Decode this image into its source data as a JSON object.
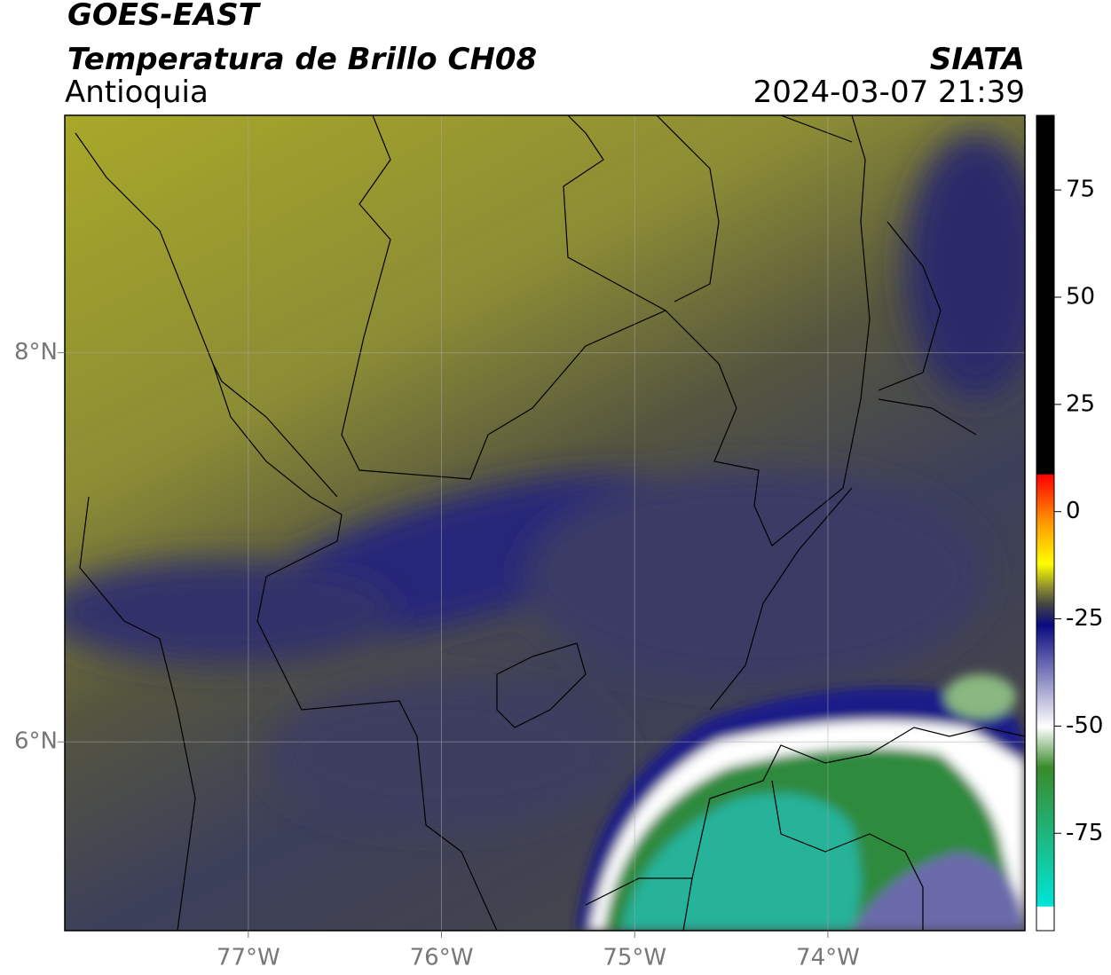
{
  "header": {
    "title": "GOES-EAST",
    "subtitle": "Temperatura de Brillo CH08",
    "region": "Antioquia",
    "source": "SIATA",
    "datetime": "2024-03-07 21:39"
  },
  "map": {
    "lonlim": [
      -77.95,
      -72.98
    ],
    "latlim": [
      5.03,
      9.22
    ],
    "lon_ticks": [
      {
        "value": -77,
        "label": "77°W"
      },
      {
        "value": -76,
        "label": "76°W"
      },
      {
        "value": -75,
        "label": "75°W"
      },
      {
        "value": -74,
        "label": "74°W"
      }
    ],
    "lat_ticks": [
      {
        "value": 8,
        "label": "8°N"
      },
      {
        "value": 6,
        "label": "6°N"
      }
    ]
  },
  "colorbar": {
    "lim": [
      -97.7,
      92.4
    ],
    "ticks": [
      75,
      50,
      25,
      0,
      -25,
      -50,
      -75
    ]
  }
}
